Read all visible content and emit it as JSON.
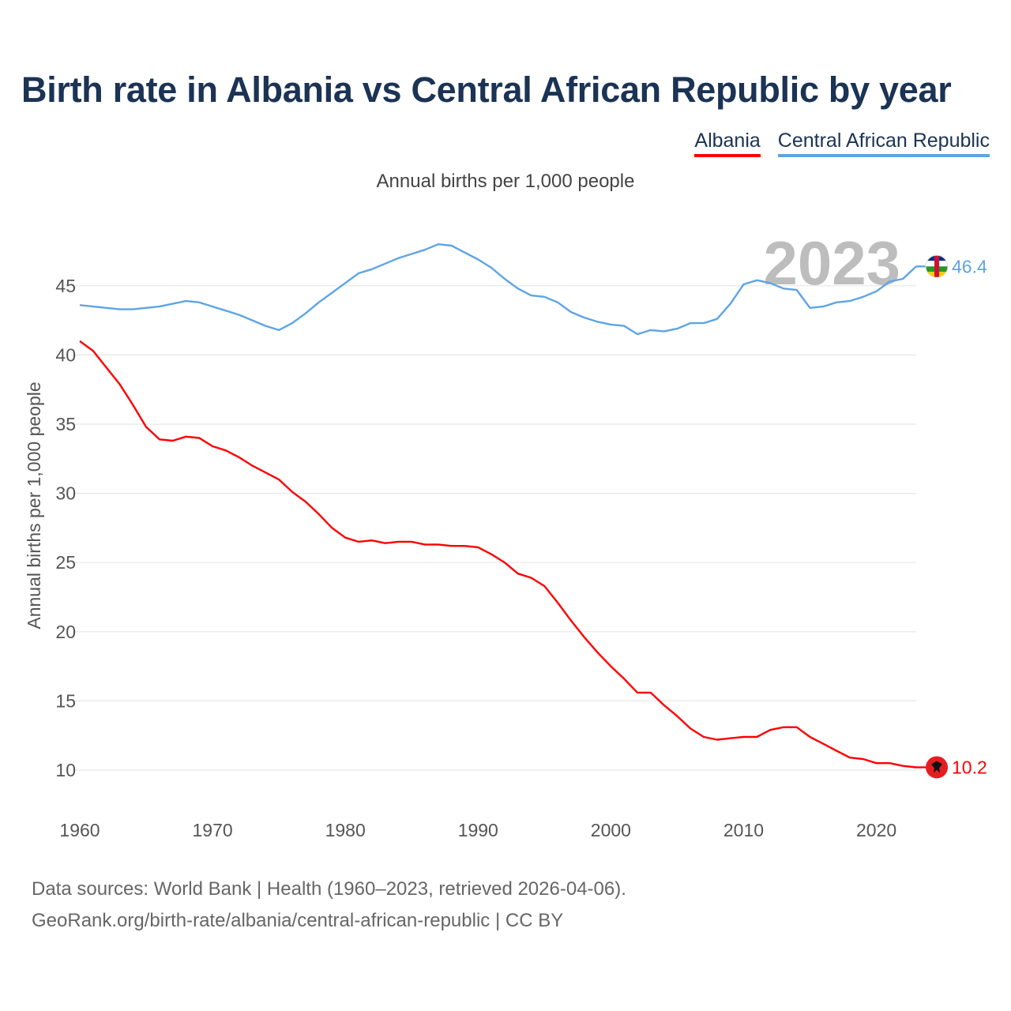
{
  "title": "Birth rate in Albania vs Central African Republic by year",
  "legend": {
    "albania": "Albania",
    "car": "Central African Republic"
  },
  "subtitle": "Annual births per 1,000 people",
  "footer": {
    "line1": "Data sources: World Bank | Health (1960–2023, retrieved 2026-04-06).",
    "line2": "GeoRank.org/birth-rate/albania/central-african-republic | CC BY"
  },
  "colors": {
    "albania": "#ff0000",
    "car": "#5ea4e6",
    "grid": "#e6e6e6",
    "tick": "#555555",
    "year": "#bdbdbd"
  },
  "chart_data": {
    "type": "line",
    "title": "Birth rate in Albania vs Central African Republic by year",
    "ylabel": "Annual births per 1,000 people",
    "xlabel": "",
    "xlim": [
      1960,
      2023
    ],
    "ylim": [
      8,
      48
    ],
    "yticks": [
      10,
      15,
      20,
      25,
      30,
      35,
      40,
      45
    ],
    "xticks": [
      1960,
      1970,
      1980,
      1990,
      2000,
      2010,
      2020
    ],
    "year_label": "2023",
    "x": [
      1960,
      1961,
      1962,
      1963,
      1964,
      1965,
      1966,
      1967,
      1968,
      1969,
      1970,
      1971,
      1972,
      1973,
      1974,
      1975,
      1976,
      1977,
      1978,
      1979,
      1980,
      1981,
      1982,
      1983,
      1984,
      1985,
      1986,
      1987,
      1988,
      1989,
      1990,
      1991,
      1992,
      1993,
      1994,
      1995,
      1996,
      1997,
      1998,
      1999,
      2000,
      2001,
      2002,
      2003,
      2004,
      2005,
      2006,
      2007,
      2008,
      2009,
      2010,
      2011,
      2012,
      2013,
      2014,
      2015,
      2016,
      2017,
      2018,
      2019,
      2020,
      2021,
      2022,
      2023
    ],
    "series": [
      {
        "name": "Albania",
        "end_label": "10.2",
        "values": [
          41.0,
          40.3,
          39.1,
          37.9,
          36.4,
          34.8,
          33.9,
          33.8,
          34.1,
          34.0,
          33.4,
          33.1,
          32.6,
          32.0,
          31.5,
          31.0,
          30.1,
          29.4,
          28.5,
          27.5,
          26.8,
          26.5,
          26.6,
          26.4,
          26.5,
          26.5,
          26.3,
          26.3,
          26.2,
          26.2,
          26.1,
          25.6,
          25.0,
          24.2,
          23.9,
          23.3,
          22.1,
          20.8,
          19.6,
          18.5,
          17.5,
          16.6,
          15.6,
          15.6,
          14.7,
          13.9,
          13.0,
          12.4,
          12.2,
          12.3,
          12.4,
          12.4,
          12.9,
          13.1,
          13.1,
          12.4,
          11.9,
          11.4,
          10.9,
          10.8,
          10.5,
          10.5,
          10.3,
          10.2
        ]
      },
      {
        "name": "Central African Republic",
        "end_label": "46.4",
        "values": [
          43.6,
          43.5,
          43.4,
          43.3,
          43.3,
          43.4,
          43.5,
          43.7,
          43.9,
          43.8,
          43.5,
          43.2,
          42.9,
          42.5,
          42.1,
          41.8,
          42.3,
          43.0,
          43.8,
          44.5,
          45.2,
          45.9,
          46.2,
          46.6,
          47.0,
          47.3,
          47.6,
          48.0,
          47.9,
          47.4,
          46.9,
          46.3,
          45.5,
          44.8,
          44.3,
          44.2,
          43.8,
          43.1,
          42.7,
          42.4,
          42.2,
          42.1,
          41.5,
          41.8,
          41.7,
          41.9,
          42.3,
          42.3,
          42.6,
          43.7,
          45.1,
          45.4,
          45.2,
          44.8,
          44.7,
          43.4,
          43.5,
          43.8,
          43.9,
          44.2,
          44.6,
          45.3,
          45.5,
          46.4
        ]
      }
    ]
  }
}
